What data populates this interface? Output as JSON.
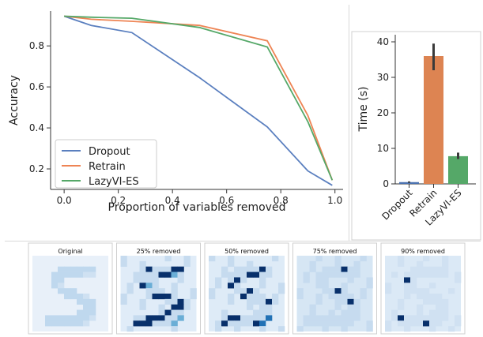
{
  "chart_data": [
    {
      "type": "line",
      "xlabel": "Proportion of variables removed",
      "ylabel": "Accuracy",
      "xlim": [
        -0.05,
        1.03
      ],
      "ylim": [
        0.1,
        0.97
      ],
      "xticks": [
        "0.0",
        "0.2",
        "0.4",
        "0.6",
        "0.8",
        "1.0"
      ],
      "yticks": [
        "0.2",
        "0.4",
        "0.6",
        "0.8"
      ],
      "legend": "lower-left",
      "series": [
        {
          "name": "Dropout",
          "color": "#5a7fbf",
          "x": [
            0.0,
            0.1,
            0.25,
            0.5,
            0.75,
            0.9,
            0.99
          ],
          "y": [
            0.945,
            0.9,
            0.865,
            0.645,
            0.405,
            0.19,
            0.12
          ]
        },
        {
          "name": "Retrain",
          "color": "#ee8454",
          "x": [
            0.0,
            0.1,
            0.25,
            0.5,
            0.75,
            0.9,
            0.99
          ],
          "y": [
            0.945,
            0.93,
            0.92,
            0.9,
            0.825,
            0.46,
            0.145
          ]
        },
        {
          "name": "LazyVI-ES",
          "color": "#55a868",
          "x": [
            0.0,
            0.1,
            0.25,
            0.5,
            0.75,
            0.9,
            0.99
          ],
          "y": [
            0.945,
            0.94,
            0.935,
            0.89,
            0.795,
            0.43,
            0.145
          ]
        }
      ]
    },
    {
      "type": "bar",
      "ylabel": "Time (s)",
      "ylim": [
        0,
        42
      ],
      "yticks": [
        "0",
        "10",
        "20",
        "30",
        "40"
      ],
      "categories": [
        "Dropout",
        "Retrain",
        "LazyVI-ES"
      ],
      "values": [
        0.5,
        36,
        7.8
      ],
      "errors": [
        [
          0.3,
          0.7
        ],
        [
          32,
          39.5
        ],
        [
          7.0,
          8.8
        ]
      ],
      "colors": [
        "#4c72b0",
        "#dd8452",
        "#55a868"
      ]
    }
  ],
  "images": {
    "titles": [
      "Original",
      "25% removed",
      "50% removed",
      "75% removed",
      "90% removed"
    ],
    "colormap": "Blues"
  }
}
